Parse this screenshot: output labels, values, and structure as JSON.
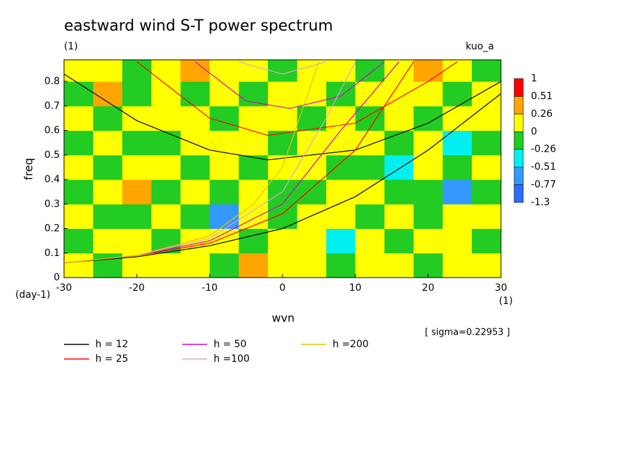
{
  "chart_data": {
    "type": "contour",
    "title": "eastward wind S-T power spectrum",
    "subtitle": "(1)",
    "run_label": "kuo_a",
    "x_label": "wvn",
    "x_unit": "(1)",
    "y_label": "freq",
    "y_unit": "(day-1)",
    "annotation": "[ sigma=0.22953 ]",
    "xlim": [
      -30,
      30
    ],
    "xticks": [
      -30,
      -20,
      -10,
      0,
      10,
      20,
      30
    ],
    "ylim": [
      0,
      0.888
    ],
    "yticks": [
      0,
      0.1,
      0.2,
      0.3,
      0.4,
      0.5,
      0.6,
      0.7,
      0.8
    ],
    "levels": [
      -1.3,
      -0.77,
      -0.51,
      -0.26,
      0,
      0.26,
      0.51,
      1
    ],
    "level_colors": [
      "#2a6cff",
      "#3399ff",
      "#00f0f0",
      "#22cc22",
      "#ffff00",
      "#ffa500",
      "#ff0000"
    ],
    "field": {
      "x": [
        -28,
        -24,
        -20,
        -16,
        -12,
        -8,
        -4,
        0,
        4,
        8,
        12,
        16,
        20,
        24,
        28
      ],
      "y": [
        0.05,
        0.15,
        0.25,
        0.35,
        0.45,
        0.55,
        0.65,
        0.75,
        0.85
      ],
      "z": [
        [
          0.1,
          -0.1,
          0.1,
          0.1,
          0.1,
          -0.1,
          0.3,
          0.1,
          0.1,
          -0.1,
          0.1,
          0.1,
          -0.1,
          0.1,
          0.1
        ],
        [
          -0.1,
          0.1,
          0.1,
          -0.1,
          0.1,
          0.1,
          -0.1,
          0.1,
          0.1,
          -0.3,
          0.1,
          -0.1,
          0.1,
          0.1,
          -0.1
        ],
        [
          0.1,
          -0.1,
          -0.1,
          0.1,
          -0.1,
          -0.6,
          0.1,
          -0.1,
          0.1,
          0.1,
          -0.1,
          0.1,
          -0.1,
          0.1,
          0.1
        ],
        [
          -0.1,
          0.1,
          0.3,
          -0.1,
          0.1,
          -0.1,
          0.1,
          -0.1,
          -0.1,
          0.1,
          0.1,
          -0.1,
          -0.1,
          -0.6,
          -0.1
        ],
        [
          0.1,
          -0.1,
          0.1,
          0.1,
          -0.1,
          0.1,
          -0.1,
          0.1,
          0.1,
          -0.1,
          -0.1,
          -0.3,
          0.1,
          -0.1,
          0.1
        ],
        [
          -0.1,
          0.1,
          -0.1,
          -0.1,
          0.1,
          0.1,
          0.1,
          -0.1,
          0.1,
          0.1,
          0.1,
          -0.1,
          0.1,
          -0.3,
          -0.1
        ],
        [
          0.1,
          -0.1,
          0.1,
          0.1,
          0.1,
          -0.1,
          0.1,
          0.1,
          -0.1,
          0.1,
          -0.1,
          0.1,
          -0.1,
          0.1,
          0.1
        ],
        [
          -0.1,
          0.3,
          -0.1,
          0.1,
          -0.1,
          0.1,
          -0.1,
          0.1,
          0.1,
          -0.1,
          0.1,
          0.1,
          0.1,
          -0.1,
          0.1
        ],
        [
          0.1,
          0.1,
          -0.1,
          0.1,
          0.3,
          0.1,
          0.1,
          -0.1,
          0.1,
          0.1,
          -0.1,
          0.1,
          0.3,
          0.1,
          -0.1
        ]
      ]
    },
    "series": [
      {
        "name": "h = 12",
        "color": "#000000",
        "curves": [
          {
            "x": [
              -30,
              -20,
              -10,
              -2,
              10,
              20,
              30
            ],
            "y": [
              0.83,
              0.64,
              0.52,
              0.48,
              0.52,
              0.63,
              0.8
            ]
          },
          {
            "x": [
              -30,
              -20,
              -10,
              0,
              10,
              20,
              30
            ],
            "y": [
              0.06,
              0.085,
              0.13,
              0.2,
              0.33,
              0.52,
              0.75
            ]
          }
        ]
      },
      {
        "name": "h = 25",
        "color": "#ff0000",
        "curves": [
          {
            "x": [
              -20,
              -10,
              -2,
              10,
              20,
              24
            ],
            "y": [
              0.88,
              0.65,
              0.58,
              0.63,
              0.8,
              0.88
            ]
          },
          {
            "x": [
              -30,
              -20,
              -10,
              0,
              10,
              18
            ],
            "y": [
              0.06,
              0.09,
              0.14,
              0.26,
              0.52,
              0.88
            ]
          }
        ]
      },
      {
        "name": "h = 50",
        "color": "#e000c0",
        "curves": [
          {
            "x": [
              -12,
              -5,
              1,
              8,
              14
            ],
            "y": [
              0.88,
              0.72,
              0.69,
              0.74,
              0.88
            ]
          },
          {
            "x": [
              -30,
              -20,
              -10,
              0,
              8,
              16
            ],
            "y": [
              0.06,
              0.09,
              0.15,
              0.3,
              0.6,
              0.88
            ]
          }
        ]
      },
      {
        "name": "h =100",
        "color": "#e0a0e0",
        "curves": [
          {
            "x": [
              -6,
              0,
              6
            ],
            "y": [
              0.88,
              0.83,
              0.88
            ]
          },
          {
            "x": [
              -30,
              -20,
              -10,
              0,
              6,
              10
            ],
            "y": [
              0.06,
              0.09,
              0.16,
              0.35,
              0.65,
              0.88
            ]
          }
        ]
      },
      {
        "name": "h =200",
        "color": "#f0c000",
        "curves": [
          {
            "x": [
              -30,
              -20,
              -10,
              -4,
              0,
              5
            ],
            "y": [
              0.06,
              0.09,
              0.17,
              0.3,
              0.45,
              0.88
            ]
          }
        ]
      }
    ]
  }
}
